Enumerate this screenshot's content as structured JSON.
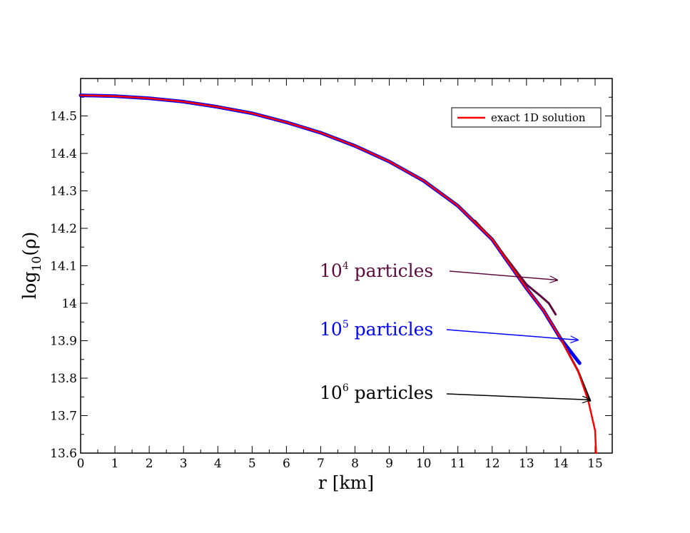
{
  "chart_data": {
    "type": "line",
    "title": "",
    "xlabel": "r [km]",
    "ylabel_main": "log",
    "ylabel_sub": "10",
    "ylabel_arg": "(ρ)",
    "xlim": [
      0,
      15.5
    ],
    "ylim": [
      13.6,
      14.6
    ],
    "x_ticks": [
      0,
      1,
      2,
      3,
      4,
      5,
      6,
      7,
      8,
      9,
      10,
      11,
      12,
      13,
      14,
      15
    ],
    "x_tick_labels": [
      "0",
      "1",
      "2",
      "3",
      "4",
      "5",
      "6",
      "7",
      "8",
      "9",
      "10",
      "11",
      "12",
      "13",
      "14",
      "15"
    ],
    "y_ticks": [
      13.6,
      13.7,
      13.8,
      13.9,
      14.0,
      14.1,
      14.2,
      14.3,
      14.4,
      14.5
    ],
    "y_tick_labels": [
      "13.6",
      "13.7",
      "13.8",
      "13.9",
      "14",
      "14.1",
      "14.2",
      "14.3",
      "14.4",
      "14.5"
    ],
    "legend": {
      "placement": "top-right",
      "entries": [
        {
          "label": "exact 1D solution",
          "color": "#ff0000"
        }
      ]
    },
    "series": [
      {
        "name": "exact 1D solution",
        "color": "#ff0000",
        "points": [
          [
            0,
            14.555
          ],
          [
            1,
            14.553
          ],
          [
            2,
            14.547
          ],
          [
            3,
            14.538
          ],
          [
            4,
            14.524
          ],
          [
            5,
            14.507
          ],
          [
            6,
            14.483
          ],
          [
            7,
            14.455
          ],
          [
            8,
            14.42
          ],
          [
            9,
            14.378
          ],
          [
            10,
            14.327
          ],
          [
            11,
            14.26
          ],
          [
            12,
            14.17
          ],
          [
            13,
            14.04
          ],
          [
            13.5,
            13.98
          ],
          [
            14,
            13.905
          ],
          [
            14.5,
            13.82
          ],
          [
            14.8,
            13.74
          ],
          [
            15,
            13.66
          ],
          [
            15.03,
            13.6
          ]
        ]
      },
      {
        "name": "10^6 particles",
        "color": "#000000",
        "points": [
          [
            0,
            14.555
          ],
          [
            1,
            14.553
          ],
          [
            2,
            14.547
          ],
          [
            3,
            14.538
          ],
          [
            4,
            14.524
          ],
          [
            5,
            14.507
          ],
          [
            6,
            14.483
          ],
          [
            7,
            14.455
          ],
          [
            8,
            14.42
          ],
          [
            9,
            14.378
          ],
          [
            10,
            14.327
          ],
          [
            11,
            14.26
          ],
          [
            12,
            14.17
          ],
          [
            13,
            14.04
          ],
          [
            13.5,
            13.98
          ],
          [
            14,
            13.905
          ],
          [
            14.5,
            13.82
          ],
          [
            14.85,
            13.74
          ]
        ]
      },
      {
        "name": "10^5 particles",
        "color": "#0000ff",
        "points": [
          [
            0,
            14.555
          ],
          [
            1,
            14.553
          ],
          [
            2,
            14.547
          ],
          [
            3,
            14.538
          ],
          [
            4,
            14.524
          ],
          [
            5,
            14.507
          ],
          [
            6,
            14.483
          ],
          [
            7,
            14.455
          ],
          [
            8,
            14.42
          ],
          [
            9,
            14.378
          ],
          [
            10,
            14.327
          ],
          [
            11,
            14.26
          ],
          [
            12,
            14.17
          ],
          [
            13,
            14.04
          ],
          [
            13.5,
            13.98
          ],
          [
            14,
            13.905
          ],
          [
            14.55,
            13.84
          ]
        ]
      },
      {
        "name": "10^4 particles",
        "color": "#5a0a3c",
        "points": [
          [
            11.5,
            14.22
          ],
          [
            12,
            14.17
          ],
          [
            13,
            14.05
          ],
          [
            13.4,
            14.02
          ],
          [
            13.65,
            14.0
          ],
          [
            13.85,
            13.97
          ]
        ]
      }
    ],
    "annotations": [
      {
        "base": "10",
        "exp": "4",
        "suffix": " particles",
        "color": "#5a0a3c",
        "arrow_to": [
          13.9,
          14.062
        ]
      },
      {
        "base": "10",
        "exp": "5",
        "suffix": " particles",
        "color": "#0000ff",
        "arrow_to": [
          14.5,
          13.902
        ]
      },
      {
        "base": "10",
        "exp": "6",
        "suffix": " particles",
        "color": "#000000",
        "arrow_to": [
          14.85,
          13.742
        ]
      }
    ]
  }
}
